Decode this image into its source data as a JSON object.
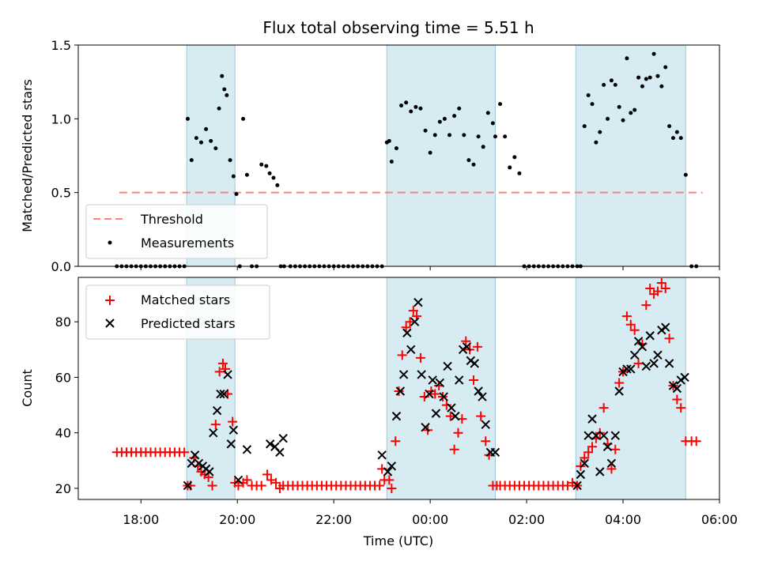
{
  "chart_data": [
    {
      "type": "scatter",
      "title": "Flux total observing time = 5.51 h",
      "xlabel": "",
      "ylabel": "Matched/Predicted stars",
      "xlim": [
        16.7,
        30.0
      ],
      "ylim": [
        0.0,
        1.5
      ],
      "yticks": [
        "0.0",
        "0.5",
        "1.0",
        "1.5"
      ],
      "threshold": {
        "name": "Threshold",
        "value": 0.5,
        "x_range": [
          17.55,
          29.65
        ],
        "color": "#ff7f7f"
      },
      "shaded_regions": [
        [
          18.95,
          19.95
        ],
        [
          23.1,
          25.35
        ],
        [
          27.02,
          29.3
        ]
      ],
      "legend": [
        "Threshold",
        "Measurements"
      ],
      "series": [
        {
          "name": "Measurements",
          "color": "#000000",
          "x": [
            17.5,
            17.6,
            17.7,
            17.8,
            17.9,
            18.0,
            18.1,
            18.2,
            18.3,
            18.4,
            18.5,
            18.6,
            18.7,
            18.8,
            18.9,
            18.97,
            19.05,
            19.15,
            19.25,
            19.35,
            19.45,
            19.55,
            19.62,
            19.68,
            19.73,
            19.78,
            19.85,
            19.92,
            19.98,
            20.05,
            20.12,
            20.2,
            20.3,
            20.4,
            20.5,
            20.6,
            20.67,
            20.75,
            20.83,
            20.9,
            20.97,
            21.1,
            21.2,
            21.3,
            21.4,
            21.5,
            21.6,
            21.7,
            21.8,
            21.9,
            22.0,
            22.1,
            22.2,
            22.3,
            22.4,
            22.5,
            22.6,
            22.7,
            22.8,
            22.9,
            23.0,
            23.1,
            23.15,
            23.2,
            23.3,
            23.4,
            23.5,
            23.6,
            23.7,
            23.8,
            23.9,
            24.0,
            24.1,
            24.2,
            24.3,
            24.4,
            24.5,
            24.6,
            24.7,
            24.8,
            24.9,
            25.0,
            25.1,
            25.2,
            25.3,
            25.35,
            25.45,
            25.55,
            25.65,
            25.75,
            25.85,
            25.95,
            26.05,
            26.15,
            26.25,
            26.35,
            26.45,
            26.55,
            26.65,
            26.75,
            26.85,
            26.95,
            27.05,
            27.12,
            27.2,
            27.28,
            27.36,
            27.44,
            27.52,
            27.6,
            27.68,
            27.76,
            27.84,
            27.92,
            28.0,
            28.08,
            28.16,
            28.24,
            28.32,
            28.4,
            28.48,
            28.56,
            28.64,
            28.72,
            28.8,
            28.88,
            28.96,
            29.04,
            29.12,
            29.2,
            29.3,
            29.42,
            29.52
          ],
          "y": [
            0,
            0,
            0,
            0,
            0,
            0,
            0,
            0,
            0,
            0,
            0,
            0,
            0,
            0,
            0,
            1.0,
            0.72,
            0.87,
            0.84,
            0.93,
            0.85,
            0.8,
            1.07,
            1.29,
            1.2,
            1.16,
            0.72,
            0.61,
            0.49,
            0,
            1.0,
            0.62,
            0,
            0,
            0.69,
            0.68,
            0.63,
            0.6,
            0.55,
            0,
            0,
            0,
            0,
            0,
            0,
            0,
            0,
            0,
            0,
            0,
            0,
            0,
            0,
            0,
            0,
            0,
            0,
            0,
            0,
            0,
            0,
            0.84,
            0.85,
            0.71,
            0.8,
            1.09,
            1.11,
            1.05,
            1.08,
            1.07,
            0.92,
            0.77,
            0.89,
            0.98,
            1.0,
            0.89,
            1.02,
            1.07,
            0.89,
            0.72,
            0.69,
            0.88,
            0.81,
            1.04,
            0.97,
            0.88,
            1.1,
            0.88,
            0.67,
            0.74,
            0.63,
            0,
            0,
            0,
            0,
            0,
            0,
            0,
            0,
            0,
            0,
            0,
            0,
            0,
            0.95,
            1.16,
            1.1,
            0.84,
            0.91,
            1.23,
            1.0,
            1.26,
            1.23,
            1.08,
            0.99,
            1.41,
            1.04,
            1.06,
            1.28,
            1.22,
            1.27,
            1.28,
            1.44,
            1.29,
            1.22,
            1.35,
            0.95,
            0.87,
            0.91,
            0.87,
            0.62,
            0,
            0
          ]
        }
      ]
    },
    {
      "type": "scatter",
      "title": "",
      "xlabel": "Time (UTC)",
      "ylabel": "Count",
      "xlim": [
        16.7,
        30.0
      ],
      "ylim": [
        16,
        96
      ],
      "yticks": [
        "20",
        "40",
        "60",
        "80"
      ],
      "xticks": [
        "18:00",
        "20:00",
        "22:00",
        "00:00",
        "02:00",
        "04:00",
        "06:00"
      ],
      "shaded_regions": [
        [
          18.95,
          19.95
        ],
        [
          23.1,
          25.35
        ],
        [
          27.02,
          29.3
        ]
      ],
      "legend": [
        "Matched stars",
        "Predicted stars"
      ],
      "series": [
        {
          "name": "Matched stars",
          "marker": "+",
          "color": "#ff0000",
          "x": [
            17.5,
            17.6,
            17.7,
            17.8,
            17.9,
            18.0,
            18.1,
            18.2,
            18.3,
            18.4,
            18.5,
            18.6,
            18.7,
            18.8,
            18.9,
            18.97,
            19.03,
            19.1,
            19.18,
            19.25,
            19.32,
            19.4,
            19.48,
            19.55,
            19.63,
            19.7,
            19.75,
            19.8,
            19.9,
            19.95,
            20.02,
            20.12,
            20.2,
            20.3,
            20.4,
            20.5,
            20.62,
            20.7,
            20.8,
            20.88,
            20.95,
            21.05,
            21.15,
            21.25,
            21.35,
            21.45,
            21.55,
            21.65,
            21.75,
            21.85,
            21.95,
            22.05,
            22.15,
            22.25,
            22.35,
            22.45,
            22.55,
            22.65,
            22.75,
            22.85,
            22.95,
            23.0,
            23.05,
            23.15,
            23.2,
            23.28,
            23.35,
            23.42,
            23.5,
            23.58,
            23.65,
            23.72,
            23.8,
            23.88,
            23.95,
            24.02,
            24.1,
            24.18,
            24.26,
            24.34,
            24.42,
            24.5,
            24.58,
            24.66,
            24.74,
            24.82,
            24.9,
            24.98,
            25.05,
            25.15,
            25.22,
            25.3,
            25.38,
            25.45,
            25.55,
            25.65,
            25.75,
            25.85,
            25.95,
            26.05,
            26.15,
            26.25,
            26.35,
            26.45,
            26.55,
            26.65,
            26.75,
            26.85,
            26.95,
            27.05,
            27.12,
            27.2,
            27.28,
            27.36,
            27.44,
            27.52,
            27.6,
            27.68,
            27.76,
            27.84,
            27.92,
            28.0,
            28.08,
            28.16,
            28.24,
            28.32,
            28.4,
            28.48,
            28.56,
            28.64,
            28.72,
            28.8,
            28.88,
            28.96,
            29.04,
            29.12,
            29.2,
            29.3,
            29.42,
            29.52
          ],
          "y": [
            33,
            33,
            33,
            33,
            33,
            33,
            33,
            33,
            33,
            33,
            33,
            33,
            33,
            33,
            33,
            21,
            21,
            31,
            28,
            26,
            25,
            24,
            21,
            43,
            62,
            65,
            63,
            54,
            44,
            22,
            21,
            22,
            23,
            21,
            21,
            21,
            25,
            23,
            22,
            20,
            21,
            21,
            21,
            21,
            21,
            21,
            21,
            21,
            21,
            21,
            21,
            21,
            21,
            21,
            21,
            21,
            21,
            21,
            21,
            21,
            21,
            27,
            23,
            23,
            20,
            37,
            55,
            68,
            78,
            80,
            84,
            82,
            67,
            53,
            41,
            55,
            54,
            57,
            53,
            50,
            46,
            34,
            40,
            45,
            73,
            70,
            59,
            71,
            46,
            37,
            32,
            21,
            21,
            21,
            21,
            21,
            21,
            21,
            21,
            21,
            21,
            21,
            21,
            21,
            21,
            21,
            21,
            21,
            22,
            21,
            28,
            31,
            33,
            35,
            38,
            40,
            49,
            36,
            27,
            34,
            58,
            62,
            82,
            79,
            77,
            65,
            72,
            86,
            92,
            90,
            91,
            94,
            92,
            74,
            57,
            52,
            49,
            37,
            37,
            37
          ]
        },
        {
          "name": "Predicted stars",
          "marker": "x",
          "color": "#000000",
          "x": [
            18.97,
            19.05,
            19.12,
            19.2,
            19.28,
            19.35,
            19.42,
            19.5,
            19.58,
            19.65,
            19.72,
            19.8,
            19.87,
            19.92,
            20.02,
            20.2,
            20.68,
            20.78,
            20.88,
            20.95,
            23.0,
            23.12,
            23.2,
            23.3,
            23.38,
            23.45,
            23.52,
            23.6,
            23.68,
            23.75,
            23.82,
            23.9,
            23.98,
            24.05,
            24.12,
            24.2,
            24.28,
            24.36,
            24.44,
            24.52,
            24.6,
            24.68,
            24.76,
            24.84,
            24.92,
            25.0,
            25.08,
            25.15,
            25.25,
            25.35,
            27.05,
            27.12,
            27.2,
            27.28,
            27.36,
            27.44,
            27.52,
            27.6,
            27.68,
            27.76,
            27.84,
            27.92,
            28.0,
            28.08,
            28.16,
            28.24,
            28.32,
            28.4,
            28.48,
            28.56,
            28.64,
            28.72,
            28.8,
            28.88,
            28.96,
            29.04,
            29.12,
            29.2,
            29.28
          ],
          "y": [
            21,
            29,
            32,
            29,
            28,
            27,
            26,
            40,
            48,
            54,
            54,
            61,
            36,
            41,
            23,
            34,
            36,
            35,
            33,
            38,
            32,
            26,
            28,
            46,
            55,
            61,
            76,
            70,
            80,
            87,
            61,
            42,
            54,
            59,
            47,
            58,
            53,
            64,
            49,
            46,
            59,
            70,
            71,
            66,
            65,
            55,
            53,
            43,
            33,
            33,
            21,
            25,
            29,
            39,
            45,
            39,
            26,
            39,
            35,
            29,
            39,
            55,
            62,
            63,
            63,
            68,
            73,
            71,
            64,
            75,
            65,
            68,
            77,
            78,
            65,
            57,
            56,
            59,
            60
          ]
        }
      ]
    }
  ]
}
